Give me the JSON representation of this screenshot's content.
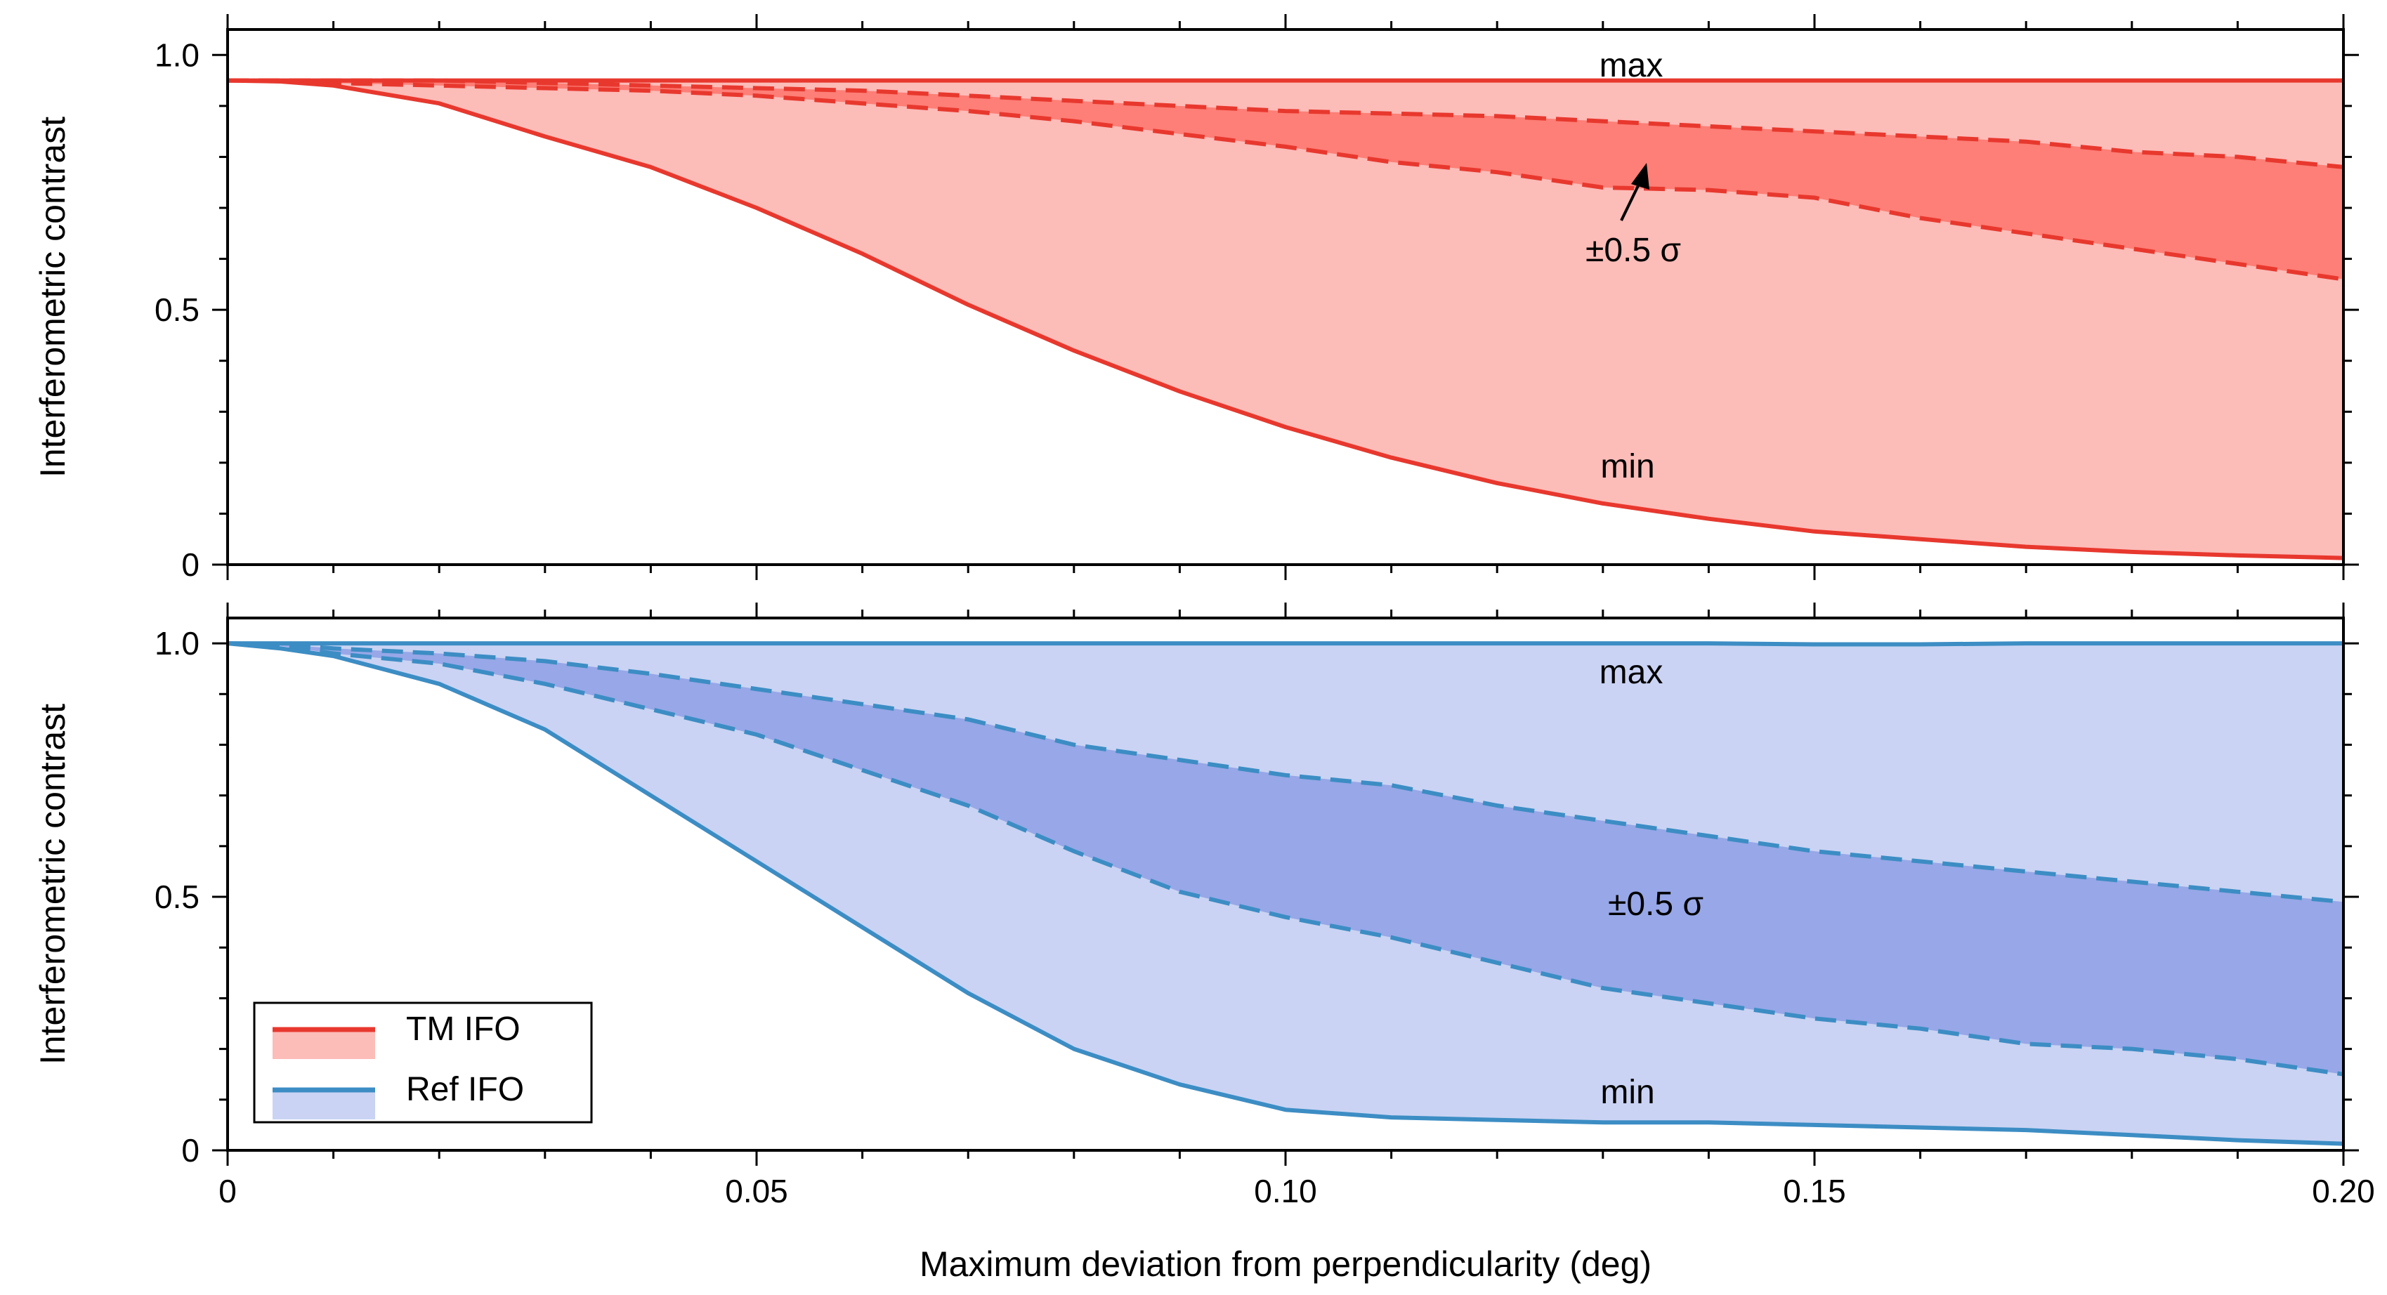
{
  "chart_data": [
    {
      "type": "area",
      "name": "TM IFO",
      "ylabel": "Interferometric contrast",
      "xlim": [
        0,
        0.2
      ],
      "ylim": [
        0,
        1.05
      ],
      "xticks": [
        0,
        0.05,
        0.1,
        0.15,
        0.2
      ],
      "yticks": [
        0,
        0.5,
        1.0
      ],
      "ytick_labels": [
        "0",
        "0.5",
        "1.0"
      ],
      "colors": {
        "line": "#e8382e",
        "range_fill": "#fcbcb8",
        "sigma_fill": "#fd7f77"
      },
      "x": [
        0,
        0.005,
        0.01,
        0.02,
        0.03,
        0.04,
        0.05,
        0.06,
        0.07,
        0.08,
        0.09,
        0.1,
        0.11,
        0.12,
        0.13,
        0.14,
        0.15,
        0.16,
        0.17,
        0.18,
        0.19,
        0.2
      ],
      "max": [
        0.95,
        0.95,
        0.95,
        0.95,
        0.95,
        0.95,
        0.95,
        0.95,
        0.95,
        0.95,
        0.95,
        0.95,
        0.95,
        0.95,
        0.95,
        0.95,
        0.95,
        0.95,
        0.95,
        0.95,
        0.95,
        0.95
      ],
      "upper_sigma": [
        0.95,
        0.95,
        0.95,
        0.95,
        0.945,
        0.94,
        0.935,
        0.93,
        0.92,
        0.91,
        0.9,
        0.89,
        0.885,
        0.88,
        0.87,
        0.86,
        0.85,
        0.84,
        0.83,
        0.81,
        0.8,
        0.78
      ],
      "lower_sigma": [
        0.95,
        0.95,
        0.945,
        0.94,
        0.935,
        0.93,
        0.92,
        0.905,
        0.89,
        0.87,
        0.845,
        0.82,
        0.79,
        0.77,
        0.74,
        0.735,
        0.72,
        0.68,
        0.65,
        0.62,
        0.59,
        0.56
      ],
      "min": [
        0.95,
        0.948,
        0.94,
        0.905,
        0.84,
        0.78,
        0.7,
        0.61,
        0.51,
        0.42,
        0.34,
        0.27,
        0.21,
        0.16,
        0.12,
        0.09,
        0.065,
        0.05,
        0.035,
        0.025,
        0.018,
        0.013
      ],
      "annotations": {
        "max": "max",
        "min": "min",
        "sigma": "±0.5 σ"
      }
    },
    {
      "type": "area",
      "name": "Ref IFO",
      "ylabel": "Interferometric contrast",
      "xlabel": "Maximum deviation from perpendicularity (deg)",
      "xlim": [
        0,
        0.2
      ],
      "ylim": [
        0,
        1.05
      ],
      "xticks": [
        0,
        0.05,
        0.1,
        0.15,
        0.2
      ],
      "xtick_labels": [
        "0",
        "0.05",
        "0.10",
        "0.15",
        "0.20"
      ],
      "yticks": [
        0,
        0.5,
        1.0
      ],
      "ytick_labels": [
        "0",
        "0.5",
        "1.0"
      ],
      "colors": {
        "line": "#3c8dc4",
        "range_fill": "#cad3f3",
        "sigma_fill": "#97a7e7"
      },
      "x": [
        0,
        0.005,
        0.01,
        0.02,
        0.03,
        0.04,
        0.05,
        0.06,
        0.07,
        0.08,
        0.09,
        0.1,
        0.11,
        0.12,
        0.13,
        0.14,
        0.15,
        0.16,
        0.17,
        0.18,
        0.19,
        0.2
      ],
      "max": [
        1.0,
        1.0,
        1.0,
        1.0,
        1.0,
        1.0,
        1.0,
        1.0,
        1.0,
        1.0,
        1.0,
        1.0,
        1.0,
        1.0,
        1.0,
        1.0,
        0.998,
        0.998,
        1.0,
        1.0,
        1.0,
        1.0
      ],
      "upper_sigma": [
        1.0,
        0.998,
        0.99,
        0.98,
        0.965,
        0.94,
        0.91,
        0.88,
        0.85,
        0.8,
        0.77,
        0.74,
        0.72,
        0.68,
        0.65,
        0.62,
        0.59,
        0.57,
        0.55,
        0.53,
        0.51,
        0.49
      ],
      "lower_sigma": [
        1.0,
        0.995,
        0.98,
        0.96,
        0.92,
        0.87,
        0.82,
        0.75,
        0.68,
        0.59,
        0.51,
        0.46,
        0.42,
        0.37,
        0.32,
        0.29,
        0.26,
        0.24,
        0.21,
        0.2,
        0.18,
        0.15
      ],
      "min": [
        1.0,
        0.99,
        0.975,
        0.92,
        0.83,
        0.7,
        0.57,
        0.44,
        0.31,
        0.2,
        0.13,
        0.08,
        0.065,
        0.06,
        0.055,
        0.055,
        0.05,
        0.045,
        0.04,
        0.03,
        0.02,
        0.013
      ],
      "annotations": {
        "max": "max",
        "min": "min",
        "sigma": "±0.5 σ"
      },
      "legend": {
        "position": "bottom-left",
        "entries": [
          {
            "label": "TM IFO",
            "color": "#e8382e",
            "fill": "#fcbcb8"
          },
          {
            "label": "Ref IFO",
            "color": "#3c8dc4",
            "fill": "#cad3f3"
          }
        ]
      }
    }
  ]
}
